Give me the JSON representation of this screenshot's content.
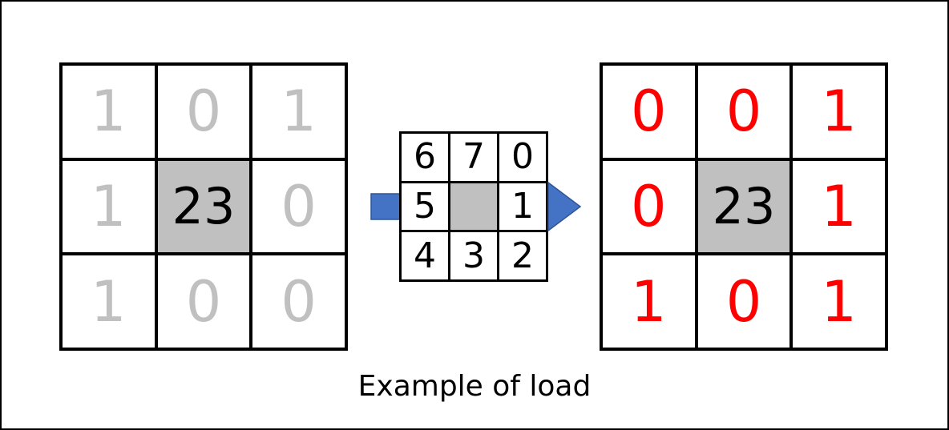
{
  "colors": {
    "dim_digit": "#c0c0c0",
    "result_digit": "#ff0000",
    "center_fill": "#c0c0c0",
    "arrow_fill": "#4472c4"
  },
  "left_grid": [
    "1",
    "0",
    "1",
    "1",
    "23",
    "0",
    "1",
    "0",
    "0"
  ],
  "order_grid": [
    "6",
    "7",
    "0",
    "5",
    "",
    "1",
    "4",
    "3",
    "2"
  ],
  "right_grid": [
    "0",
    "0",
    "1",
    "0",
    "23",
    "1",
    "1",
    "0",
    "1"
  ],
  "icons": {
    "input_arrow": "arrow-right-icon",
    "output_arrow": "arrow-right-icon"
  },
  "caption": "Example of load"
}
